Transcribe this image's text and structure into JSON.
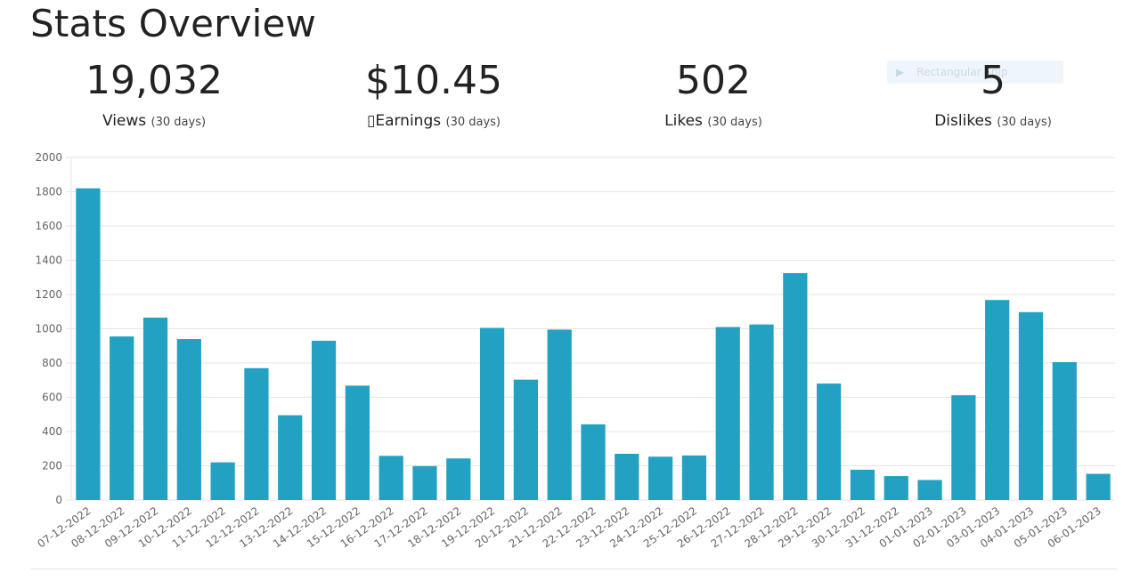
{
  "page": {
    "title": "Stats Overview"
  },
  "stats": [
    {
      "value": "19,032",
      "label": "Views",
      "period": "(30 days)"
    },
    {
      "value": "$10.45",
      "label": "▯Earnings",
      "period": "(30 days)"
    },
    {
      "value": "502",
      "label": "Likes",
      "period": "(30 days)"
    },
    {
      "value": "5",
      "label": "Dislikes",
      "period": "(30 days)"
    }
  ],
  "tooltip": {
    "icon": "play-icon",
    "text": "Rectangular Snip"
  },
  "colors": {
    "bar": "#23a1c3",
    "grid": "#e6e6e6",
    "axis_text": "#666666"
  },
  "chart_data": {
    "type": "bar",
    "title": "",
    "xlabel": "",
    "ylabel": "",
    "ylim": [
      0,
      2000
    ],
    "yticks": [
      0,
      200,
      400,
      600,
      800,
      1000,
      1200,
      1400,
      1600,
      1800,
      2000
    ],
    "grid": true,
    "legend": "none",
    "categories": [
      "07-12-2022",
      "08-12-2022",
      "09-12-2022",
      "10-12-2022",
      "11-12-2022",
      "12-12-2022",
      "13-12-2022",
      "14-12-2022",
      "15-12-2022",
      "16-12-2022",
      "17-12-2022",
      "18-12-2022",
      "19-12-2022",
      "20-12-2022",
      "21-12-2022",
      "22-12-2022",
      "23-12-2022",
      "24-12-2022",
      "25-12-2022",
      "26-12-2022",
      "27-12-2022",
      "28-12-2022",
      "29-12-2022",
      "30-12-2022",
      "31-12-2022",
      "01-01-2023",
      "02-01-2023",
      "03-01-2023",
      "04-01-2023",
      "05-01-2023",
      "06-01-2023"
    ],
    "values": [
      1820,
      955,
      1065,
      940,
      220,
      770,
      495,
      930,
      668,
      258,
      198,
      243,
      1005,
      703,
      995,
      442,
      270,
      253,
      260,
      1010,
      1025,
      1325,
      680,
      177,
      140,
      117,
      612,
      1168,
      1097,
      805,
      153
    ]
  }
}
